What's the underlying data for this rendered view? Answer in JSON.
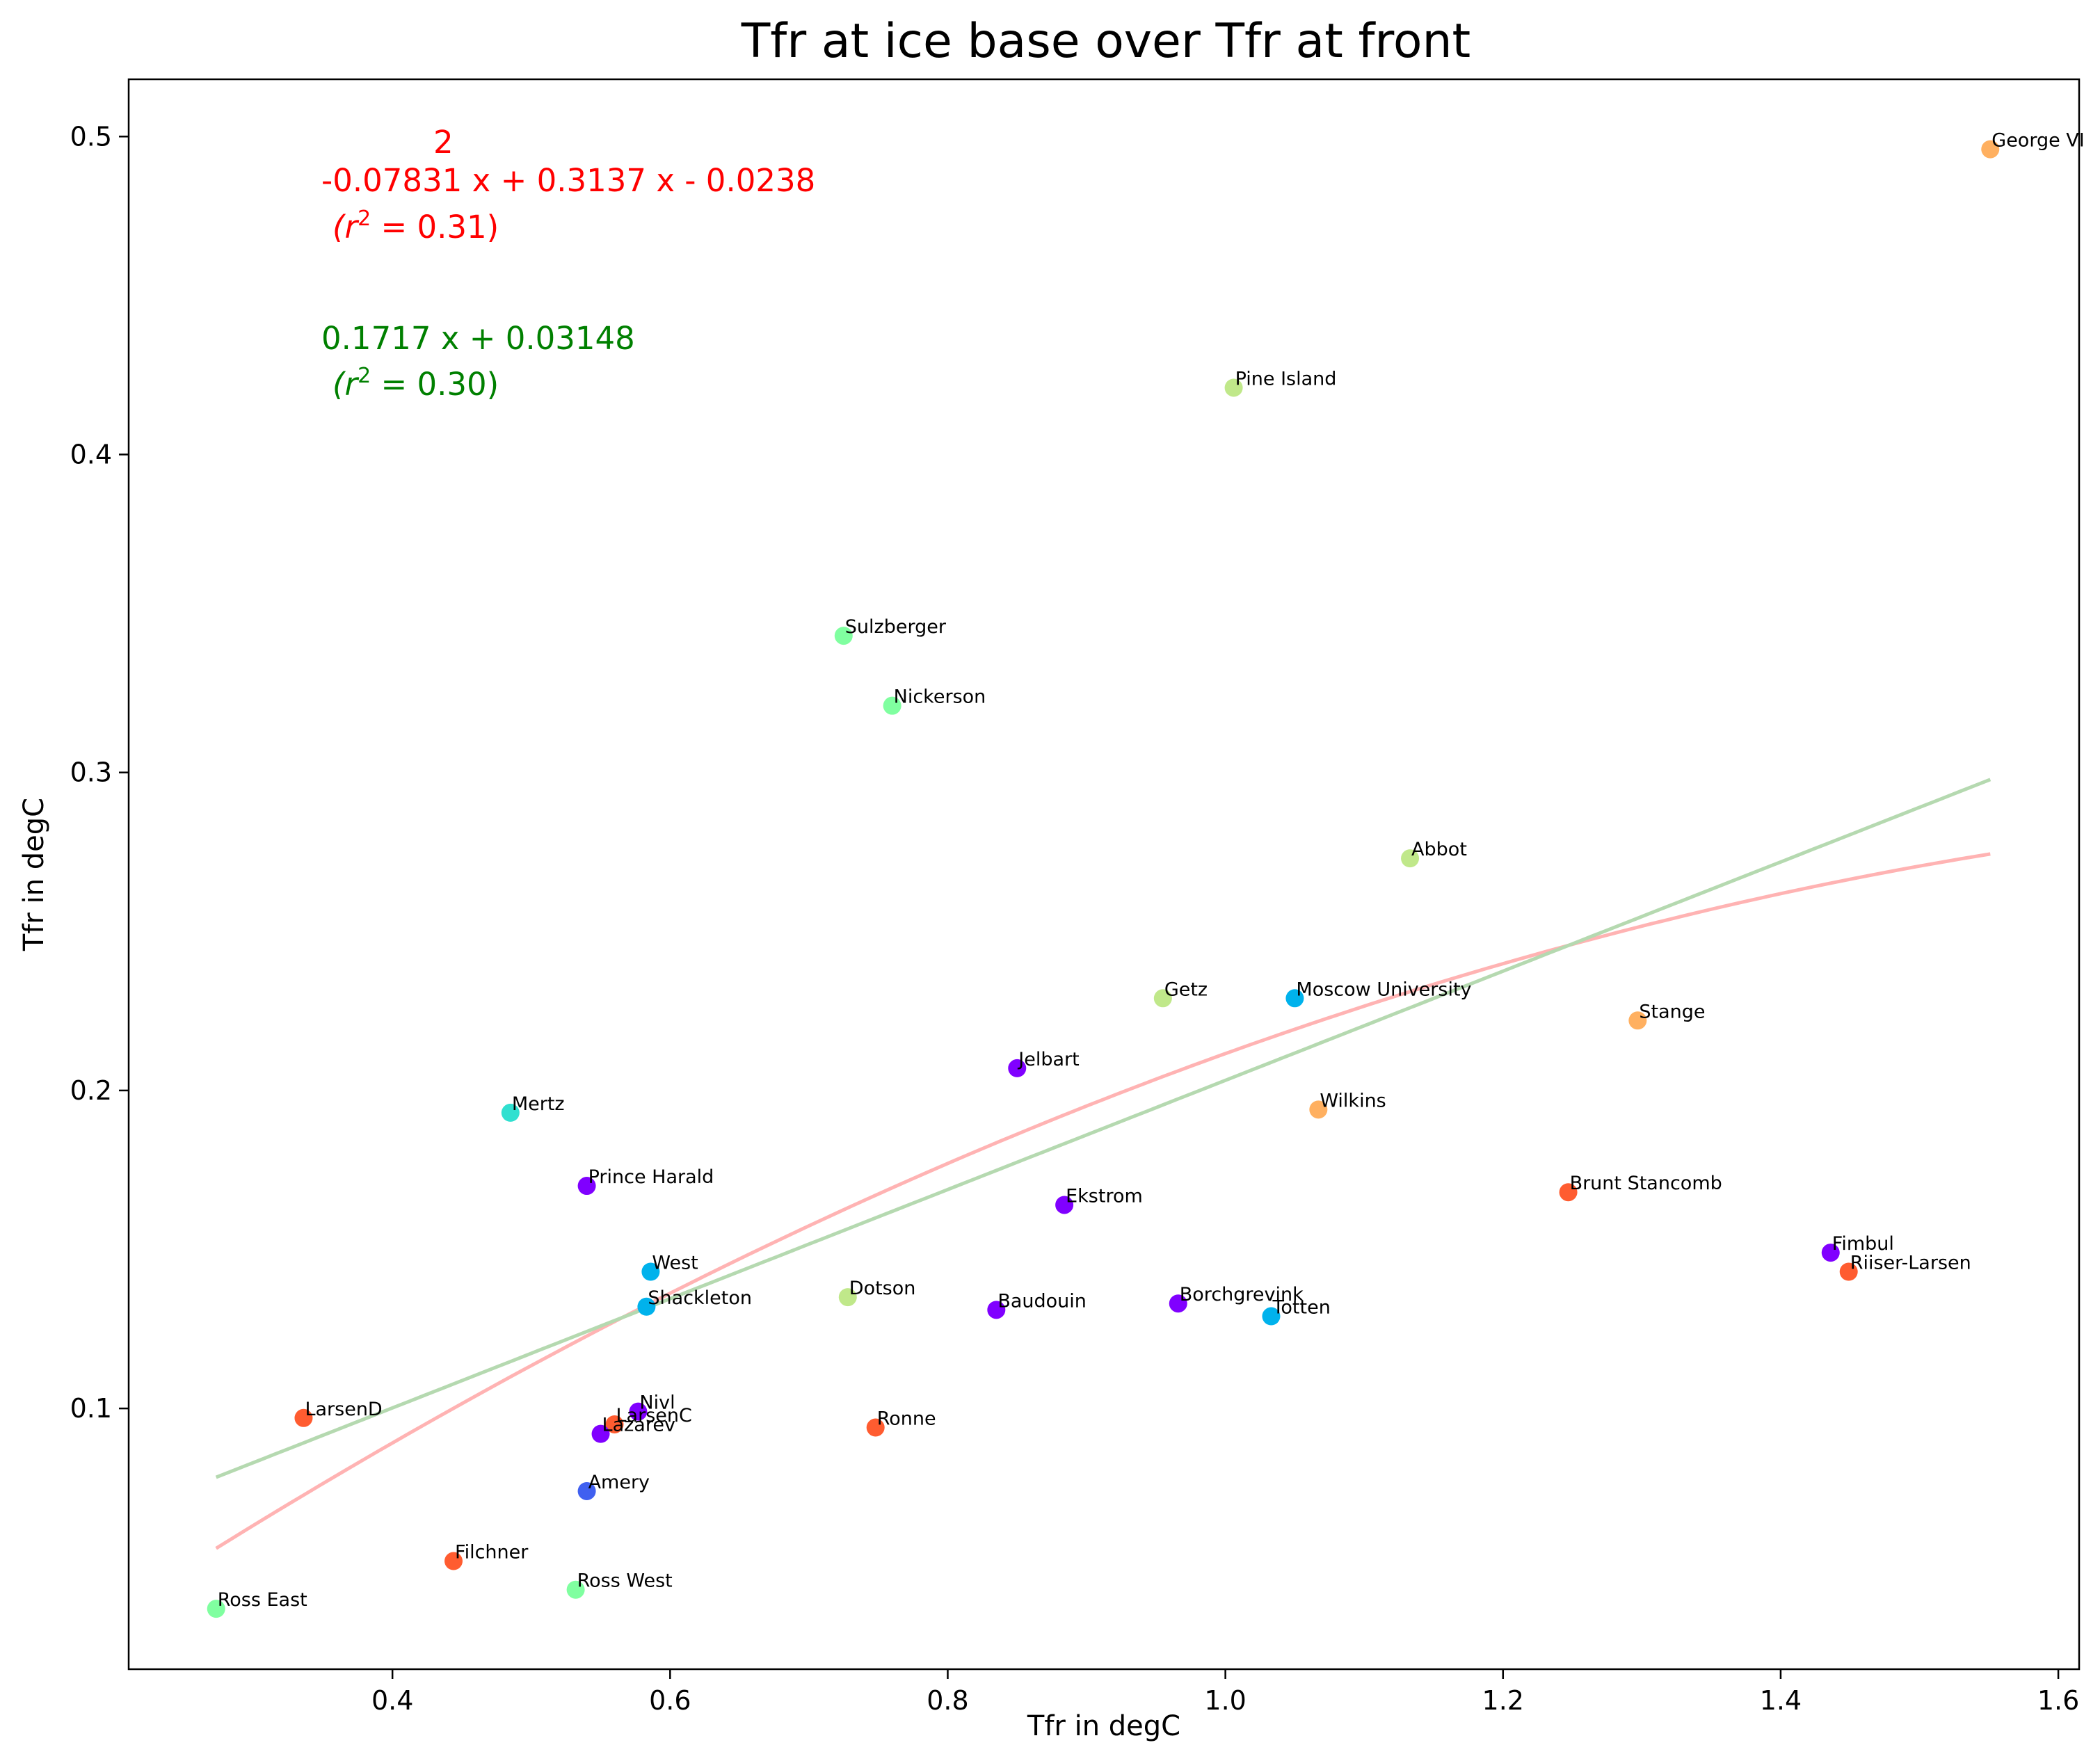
{
  "chart_data": {
    "type": "scatter",
    "title": "Tfr at ice base over Tfr at front",
    "xlabel": "Tfr in degC",
    "ylabel": "Tfr in degC",
    "xlim": [
      0.21,
      1.615
    ],
    "ylim": [
      0.018,
      0.518
    ],
    "xticks": [
      0.4,
      0.6,
      0.8,
      1.0,
      1.2,
      1.4,
      1.6
    ],
    "xtick_labels": [
      "0.4",
      "0.6",
      "0.8",
      "1.0",
      "1.2",
      "1.4",
      "1.6"
    ],
    "yticks": [
      0.1,
      0.2,
      0.3,
      0.4,
      0.5
    ],
    "ytick_labels": [
      "0.1",
      "0.2",
      "0.3",
      "0.4",
      "0.5"
    ],
    "grid": false,
    "points": [
      {
        "name": "George VI",
        "x": 1.551,
        "y": 0.496,
        "color": "#ffb060"
      },
      {
        "name": "Pine Island",
        "x": 1.006,
        "y": 0.421,
        "color": "#c0e88a"
      },
      {
        "name": "Sulzberger",
        "x": 0.725,
        "y": 0.343,
        "color": "#80ffa0"
      },
      {
        "name": "Nickerson",
        "x": 0.76,
        "y": 0.321,
        "color": "#80ffa0"
      },
      {
        "name": "Abbot",
        "x": 1.133,
        "y": 0.273,
        "color": "#c0e88a"
      },
      {
        "name": "Getz",
        "x": 0.955,
        "y": 0.229,
        "color": "#c0e88a"
      },
      {
        "name": "Moscow University",
        "x": 1.05,
        "y": 0.229,
        "color": "#00b2ec"
      },
      {
        "name": "Stange",
        "x": 1.297,
        "y": 0.222,
        "color": "#ffb060"
      },
      {
        "name": "Jelbart",
        "x": 0.85,
        "y": 0.207,
        "color": "#8000ff"
      },
      {
        "name": "Wilkins",
        "x": 1.067,
        "y": 0.194,
        "color": "#ffb060"
      },
      {
        "name": "Mertz",
        "x": 0.485,
        "y": 0.193,
        "color": "#30e0d0"
      },
      {
        "name": "Prince Harald",
        "x": 0.54,
        "y": 0.17,
        "color": "#8000ff"
      },
      {
        "name": "Brunt Stancomb",
        "x": 1.247,
        "y": 0.168,
        "color": "#ff5c30"
      },
      {
        "name": "Ekstrom",
        "x": 0.884,
        "y": 0.164,
        "color": "#8000ff"
      },
      {
        "name": "Fimbul",
        "x": 1.436,
        "y": 0.149,
        "color": "#8000ff"
      },
      {
        "name": "Riiser-Larsen",
        "x": 1.449,
        "y": 0.143,
        "color": "#ff5c30"
      },
      {
        "name": "West",
        "x": 0.586,
        "y": 0.143,
        "color": "#00b2ec"
      },
      {
        "name": "Dotson",
        "x": 0.728,
        "y": 0.135,
        "color": "#c0e88a"
      },
      {
        "name": "Shackleton",
        "x": 0.583,
        "y": 0.132,
        "color": "#00b2ec"
      },
      {
        "name": "Baudouin",
        "x": 0.835,
        "y": 0.131,
        "color": "#8000ff"
      },
      {
        "name": "Borchgrevink",
        "x": 0.966,
        "y": 0.133,
        "color": "#8000ff"
      },
      {
        "name": "Totten",
        "x": 1.033,
        "y": 0.129,
        "color": "#00b2ec"
      },
      {
        "name": "LarsenD",
        "x": 0.336,
        "y": 0.097,
        "color": "#ff5c30"
      },
      {
        "name": "Nivl",
        "x": 0.577,
        "y": 0.099,
        "color": "#8000ff"
      },
      {
        "name": "LarsenC",
        "x": 0.56,
        "y": 0.095,
        "color": "#ff5c30"
      },
      {
        "name": "Lazarev",
        "x": 0.55,
        "y": 0.092,
        "color": "#8000ff"
      },
      {
        "name": "Ronne",
        "x": 0.748,
        "y": 0.094,
        "color": "#ff5c30"
      },
      {
        "name": "Amery",
        "x": 0.54,
        "y": 0.074,
        "color": "#4060f0"
      },
      {
        "name": "Filchner",
        "x": 0.444,
        "y": 0.052,
        "color": "#ff5c30"
      },
      {
        "name": "Ross West",
        "x": 0.532,
        "y": 0.043,
        "color": "#80ffa0"
      },
      {
        "name": "Ross East",
        "x": 0.273,
        "y": 0.037,
        "color": "#80ffa0"
      }
    ],
    "fits": [
      {
        "kind": "poly2",
        "coeffs": [
          -0.07831,
          0.3137,
          -0.0238
        ],
        "x_range": [
          0.273,
          1.551
        ],
        "color": "#ffb3b3"
      },
      {
        "kind": "linear",
        "coeffs": [
          0.1717,
          0.03148
        ],
        "x_range": [
          0.273,
          1.551
        ],
        "color": "#b5d9b0"
      }
    ],
    "annotations": [
      {
        "color": "#ff0000",
        "exponent": "2",
        "equation": "-0.07831 x + 0.3137 x - 0.0238",
        "r2_prefix": "(r",
        "r2_sup": "2",
        "r2_suffix": " = 0.31)"
      },
      {
        "color": "#008000",
        "equation": "0.1717 x + 0.03148",
        "r2_prefix": "(r",
        "r2_sup": "2",
        "r2_suffix": " = 0.30)"
      }
    ]
  }
}
